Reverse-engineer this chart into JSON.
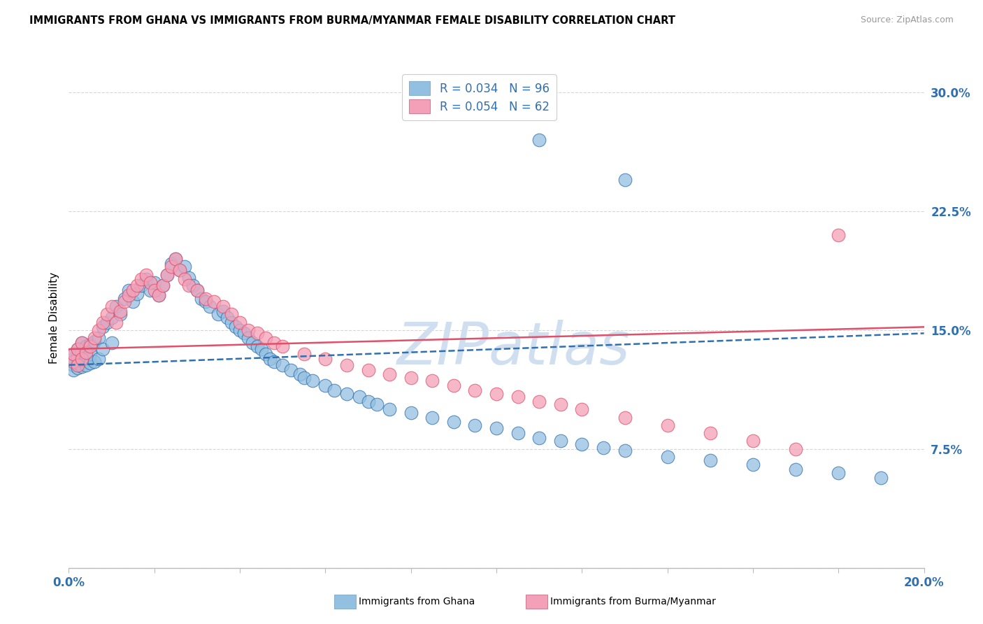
{
  "title": "IMMIGRANTS FROM GHANA VS IMMIGRANTS FROM BURMA/MYANMAR FEMALE DISABILITY CORRELATION CHART",
  "source": "Source: ZipAtlas.com",
  "ylabel": "Female Disability",
  "y_ticks": [
    0.0,
    0.075,
    0.15,
    0.225,
    0.3
  ],
  "y_tick_labels": [
    "",
    "7.5%",
    "15.0%",
    "22.5%",
    "30.0%"
  ],
  "x_lim": [
    0.0,
    0.2
  ],
  "y_lim": [
    0.0,
    0.315
  ],
  "ghana_R": 0.034,
  "ghana_N": 96,
  "burma_R": 0.054,
  "burma_N": 62,
  "ghana_color": "#93bfe0",
  "burma_color": "#f4a0b8",
  "ghana_line_color": "#3070b0",
  "burma_line_color": "#e0506a",
  "watermark": "ZIPatlas",
  "watermark_color": "#d0dff0",
  "ghana_trend_x0": 0.0,
  "ghana_trend_y0": 0.128,
  "ghana_trend_x1": 0.2,
  "ghana_trend_y1": 0.148,
  "burma_trend_x0": 0.0,
  "burma_trend_y0": 0.138,
  "burma_trend_x1": 0.2,
  "burma_trend_y1": 0.152,
  "ghana_scatter_x": [
    0.001,
    0.001,
    0.001,
    0.001,
    0.001,
    0.002,
    0.002,
    0.002,
    0.002,
    0.003,
    0.003,
    0.003,
    0.003,
    0.004,
    0.004,
    0.004,
    0.005,
    0.005,
    0.005,
    0.006,
    0.006,
    0.007,
    0.007,
    0.008,
    0.008,
    0.009,
    0.01,
    0.01,
    0.011,
    0.012,
    0.013,
    0.014,
    0.015,
    0.016,
    0.017,
    0.018,
    0.019,
    0.02,
    0.021,
    0.022,
    0.023,
    0.024,
    0.025,
    0.026,
    0.027,
    0.028,
    0.029,
    0.03,
    0.031,
    0.032,
    0.033,
    0.035,
    0.036,
    0.037,
    0.038,
    0.039,
    0.04,
    0.041,
    0.042,
    0.043,
    0.044,
    0.045,
    0.046,
    0.047,
    0.048,
    0.05,
    0.052,
    0.054,
    0.055,
    0.057,
    0.06,
    0.062,
    0.065,
    0.068,
    0.07,
    0.072,
    0.075,
    0.08,
    0.085,
    0.09,
    0.095,
    0.1,
    0.105,
    0.11,
    0.115,
    0.12,
    0.125,
    0.13,
    0.14,
    0.15,
    0.16,
    0.17,
    0.18,
    0.19,
    0.11,
    0.13
  ],
  "ghana_scatter_y": [
    0.128,
    0.13,
    0.132,
    0.125,
    0.135,
    0.126,
    0.129,
    0.133,
    0.138,
    0.127,
    0.131,
    0.136,
    0.142,
    0.128,
    0.134,
    0.14,
    0.129,
    0.135,
    0.141,
    0.13,
    0.143,
    0.132,
    0.145,
    0.138,
    0.152,
    0.155,
    0.142,
    0.158,
    0.165,
    0.16,
    0.17,
    0.175,
    0.168,
    0.173,
    0.178,
    0.182,
    0.175,
    0.18,
    0.172,
    0.178,
    0.185,
    0.192,
    0.195,
    0.188,
    0.19,
    0.183,
    0.178,
    0.175,
    0.17,
    0.168,
    0.165,
    0.16,
    0.162,
    0.158,
    0.155,
    0.152,
    0.15,
    0.148,
    0.145,
    0.142,
    0.14,
    0.138,
    0.135,
    0.132,
    0.13,
    0.128,
    0.125,
    0.122,
    0.12,
    0.118,
    0.115,
    0.112,
    0.11,
    0.108,
    0.105,
    0.103,
    0.1,
    0.098,
    0.095,
    0.092,
    0.09,
    0.088,
    0.085,
    0.082,
    0.08,
    0.078,
    0.076,
    0.074,
    0.07,
    0.068,
    0.065,
    0.062,
    0.06,
    0.057,
    0.27,
    0.245
  ],
  "burma_scatter_x": [
    0.001,
    0.001,
    0.002,
    0.002,
    0.003,
    0.003,
    0.004,
    0.005,
    0.006,
    0.007,
    0.008,
    0.009,
    0.01,
    0.011,
    0.012,
    0.013,
    0.014,
    0.015,
    0.016,
    0.017,
    0.018,
    0.019,
    0.02,
    0.021,
    0.022,
    0.023,
    0.024,
    0.025,
    0.026,
    0.027,
    0.028,
    0.03,
    0.032,
    0.034,
    0.036,
    0.038,
    0.04,
    0.042,
    0.044,
    0.046,
    0.048,
    0.05,
    0.055,
    0.06,
    0.065,
    0.07,
    0.075,
    0.08,
    0.085,
    0.09,
    0.095,
    0.1,
    0.105,
    0.11,
    0.115,
    0.12,
    0.13,
    0.14,
    0.15,
    0.16,
    0.17,
    0.18
  ],
  "burma_scatter_y": [
    0.13,
    0.135,
    0.128,
    0.138,
    0.132,
    0.142,
    0.136,
    0.14,
    0.145,
    0.15,
    0.155,
    0.16,
    0.165,
    0.155,
    0.162,
    0.168,
    0.172,
    0.175,
    0.178,
    0.182,
    0.185,
    0.18,
    0.175,
    0.172,
    0.178,
    0.185,
    0.19,
    0.195,
    0.188,
    0.182,
    0.178,
    0.175,
    0.17,
    0.168,
    0.165,
    0.16,
    0.155,
    0.15,
    0.148,
    0.145,
    0.142,
    0.14,
    0.135,
    0.132,
    0.128,
    0.125,
    0.122,
    0.12,
    0.118,
    0.115,
    0.112,
    0.11,
    0.108,
    0.105,
    0.103,
    0.1,
    0.095,
    0.09,
    0.085,
    0.08,
    0.075,
    0.21
  ]
}
